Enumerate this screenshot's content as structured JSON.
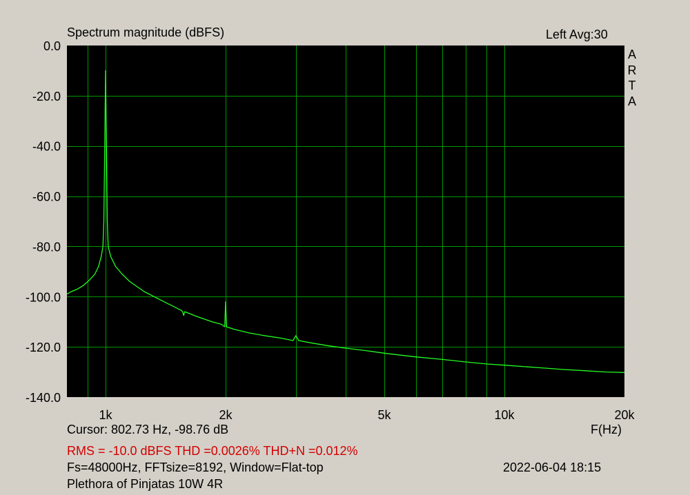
{
  "header": {
    "title": "Spectrum magnitude (dBFS)",
    "channel_avg": "Left  Avg:30",
    "watermark_letters": [
      "A",
      "R",
      "T",
      "A"
    ]
  },
  "footer": {
    "cursor": "Cursor: 802.73 Hz, -98.76 dB",
    "x_unit": "F(Hz)",
    "rms_thd": "RMS =  -10.0 dBFS  THD =0.0026%  THD+N =0.012%",
    "fft_info": "Fs=48000Hz, FFTsize=8192, Window=Flat-top",
    "datetime": "2022-06-04  18:15",
    "device": "Plethora of Pinjatas 10W 4R"
  },
  "colors": {
    "background": "#d4d0c8",
    "plot_bg": "#000000",
    "grid": "#009900",
    "trace": "#22ff22",
    "rms_text": "#d40000"
  },
  "chart_data": {
    "type": "line",
    "x_scale": "log",
    "xlim": [
      800,
      20000
    ],
    "ylim": [
      -140,
      0
    ],
    "grid": true,
    "x_ticks": [
      {
        "value": 1000,
        "label": "1k"
      },
      {
        "value": 2000,
        "label": "2k"
      },
      {
        "value": 5000,
        "label": "5k"
      },
      {
        "value": 10000,
        "label": "10k"
      },
      {
        "value": 20000,
        "label": "20k"
      }
    ],
    "x_minor_gridlines": [
      900,
      3000,
      4000,
      6000,
      7000,
      8000,
      9000
    ],
    "y_ticks": [
      {
        "value": 0,
        "label": "0.0"
      },
      {
        "value": -20,
        "label": "-20.0"
      },
      {
        "value": -40,
        "label": "-40.0"
      },
      {
        "value": -60,
        "label": "-60.0"
      },
      {
        "value": -80,
        "label": "-80.0"
      },
      {
        "value": -100,
        "label": "-100.0"
      },
      {
        "value": -120,
        "label": "-120.0"
      },
      {
        "value": -140,
        "label": "-140.0"
      }
    ],
    "series": [
      {
        "points": [
          [
            800,
            -99
          ],
          [
            820,
            -98
          ],
          [
            850,
            -97
          ],
          [
            880,
            -95.5
          ],
          [
            910,
            -93.5
          ],
          [
            940,
            -91
          ],
          [
            960,
            -88
          ],
          [
            975,
            -84
          ],
          [
            985,
            -80
          ],
          [
            990,
            -70
          ],
          [
            995,
            -40
          ],
          [
            1000,
            -10
          ],
          [
            1005,
            -40
          ],
          [
            1010,
            -70
          ],
          [
            1015,
            -80
          ],
          [
            1030,
            -84
          ],
          [
            1060,
            -88
          ],
          [
            1100,
            -91
          ],
          [
            1150,
            -94
          ],
          [
            1250,
            -98
          ],
          [
            1400,
            -102
          ],
          [
            1550,
            -105.5
          ],
          [
            1560,
            -106
          ],
          [
            1570,
            -107.5
          ],
          [
            1580,
            -106
          ],
          [
            1700,
            -108
          ],
          [
            1850,
            -110
          ],
          [
            1950,
            -111
          ],
          [
            1990,
            -112
          ],
          [
            2000,
            -102
          ],
          [
            2010,
            -112
          ],
          [
            2100,
            -113
          ],
          [
            2300,
            -114.5
          ],
          [
            2500,
            -115.5
          ],
          [
            2750,
            -116.5
          ],
          [
            2950,
            -117.5
          ],
          [
            3000,
            -115.5
          ],
          [
            3050,
            -117.5
          ],
          [
            3300,
            -118.5
          ],
          [
            3600,
            -119.5
          ],
          [
            4000,
            -120.5
          ],
          [
            4500,
            -121.5
          ],
          [
            5000,
            -122.5
          ],
          [
            5500,
            -123.3
          ],
          [
            6000,
            -124
          ],
          [
            7000,
            -125
          ],
          [
            8000,
            -126
          ],
          [
            9000,
            -126.8
          ],
          [
            10000,
            -127.3
          ],
          [
            12000,
            -128.2
          ],
          [
            14000,
            -129
          ],
          [
            16000,
            -129.5
          ],
          [
            18000,
            -130
          ],
          [
            20000,
            -130.2
          ]
        ]
      }
    ]
  }
}
